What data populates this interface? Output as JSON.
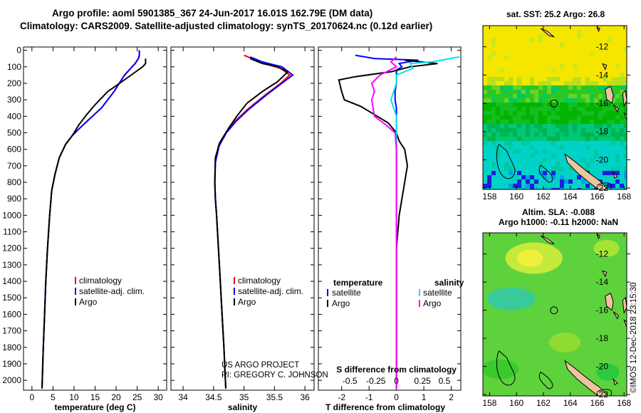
{
  "header": {
    "line1": "Argo profile: aoml 5901385_367 24-Jun-2017 16.01S 162.79E (DM data)",
    "line2": "Climatology: CARS2009. Satellite-adjusted climatology: synTS_20170624.nc (0.12d earlier)"
  },
  "credits": {
    "line1": "US ARGO PROJECT",
    "line2": "PI: GREGORY C. JOHNSON"
  },
  "imos_label": "©IMOS 12-Dec-2018 23:15:30",
  "colors": {
    "climatology": "#ff0000",
    "satellite": "#0000ff",
    "argo": "#000000",
    "sat_salinity": "#00e5e5",
    "argo_salinity": "#ff00ff"
  },
  "depth_axis": {
    "ticks": [
      0,
      100,
      200,
      300,
      400,
      500,
      600,
      700,
      800,
      900,
      1000,
      1100,
      1200,
      1300,
      1400,
      1500,
      1600,
      1700,
      1800,
      1900,
      2000
    ]
  },
  "legend1": {
    "entries": [
      "climatology",
      "satellite-adj. clim.",
      "Argo"
    ]
  },
  "legend_diff": {
    "temperature_title": "temperature",
    "salinity_title": "salinity",
    "entries": [
      "satellite",
      "Argo"
    ]
  },
  "chart_data": [
    {
      "type": "line",
      "xlabel": "temperature (deg C)",
      "xticks": [
        0,
        5,
        10,
        15,
        20,
        25,
        30
      ],
      "xlim": [
        -2,
        32
      ],
      "ylim": [
        2060,
        -20
      ],
      "series": [
        {
          "name": "climatology",
          "points": [
            [
              25.5,
              0
            ],
            [
              25.5,
              30
            ],
            [
              25.3,
              50
            ],
            [
              24.5,
              80
            ],
            [
              22.0,
              150
            ],
            [
              19.5,
              250
            ],
            [
              16.5,
              350
            ],
            [
              13.5,
              420
            ],
            [
              11.0,
              480
            ],
            [
              9.5,
              520
            ],
            [
              8.0,
              570
            ],
            [
              6.5,
              650
            ],
            [
              5.5,
              750
            ],
            [
              4.7,
              850
            ],
            [
              4.2,
              1000
            ],
            [
              3.7,
              1200
            ],
            [
              3.3,
              1400
            ],
            [
              3.0,
              1600
            ],
            [
              2.7,
              1800
            ],
            [
              2.4,
              2050
            ]
          ]
        },
        {
          "name": "satellite-adj. clim.",
          "points": [
            [
              25.5,
              0
            ],
            [
              25.5,
              30
            ],
            [
              25.3,
              50
            ],
            [
              24.5,
              80
            ],
            [
              22.0,
              150
            ],
            [
              19.5,
              250
            ],
            [
              16.5,
              350
            ],
            [
              13.5,
              420
            ],
            [
              11.0,
              480
            ],
            [
              9.5,
              520
            ],
            [
              8.0,
              570
            ],
            [
              6.5,
              650
            ],
            [
              5.5,
              750
            ],
            [
              4.7,
              850
            ],
            [
              4.2,
              1000
            ],
            [
              3.7,
              1200
            ],
            [
              3.3,
              1400
            ],
            [
              3.0,
              1600
            ],
            [
              2.7,
              1800
            ],
            [
              2.4,
              2050
            ]
          ]
        },
        {
          "name": "Argo",
          "points": [
            [
              27.0,
              50
            ],
            [
              27.0,
              80
            ],
            [
              26.3,
              100
            ],
            [
              22.5,
              170
            ],
            [
              18.0,
              250
            ],
            [
              15.0,
              330
            ],
            [
              13.0,
              390
            ],
            [
              11.2,
              450
            ],
            [
              10.0,
              500
            ],
            [
              9.2,
              530
            ],
            [
              8.0,
              570
            ],
            [
              6.5,
              650
            ],
            [
              5.5,
              750
            ],
            [
              4.7,
              850
            ],
            [
              4.2,
              1000
            ],
            [
              3.7,
              1200
            ],
            [
              3.3,
              1400
            ],
            [
              3.0,
              1600
            ],
            [
              2.7,
              1800
            ],
            [
              2.4,
              2050
            ]
          ]
        }
      ]
    },
    {
      "type": "line",
      "xlabel": "salinity",
      "xticks": [
        34,
        34.5,
        35,
        35.5,
        36
      ],
      "xlim": [
        33.8,
        36.15
      ],
      "ylim": [
        2060,
        -20
      ],
      "series": [
        {
          "name": "climatology",
          "points": [
            [
              35.0,
              30
            ],
            [
              35.25,
              70
            ],
            [
              35.6,
              110
            ],
            [
              35.75,
              150
            ],
            [
              35.6,
              200
            ],
            [
              35.35,
              270
            ],
            [
              35.05,
              360
            ],
            [
              34.85,
              430
            ],
            [
              34.7,
              500
            ],
            [
              34.58,
              580
            ],
            [
              34.53,
              680
            ],
            [
              34.52,
              800
            ],
            [
              34.53,
              900
            ],
            [
              34.55,
              1000
            ],
            [
              34.58,
              1200
            ],
            [
              34.61,
              1400
            ],
            [
              34.64,
              1600
            ],
            [
              34.67,
              1800
            ],
            [
              34.7,
              2050
            ]
          ]
        },
        {
          "name": "satellite-adj. clim.",
          "points": [
            [
              35.1,
              40
            ],
            [
              35.3,
              70
            ],
            [
              35.62,
              100
            ],
            [
              35.8,
              150
            ],
            [
              35.62,
              200
            ],
            [
              35.37,
              270
            ],
            [
              35.07,
              360
            ],
            [
              34.87,
              430
            ],
            [
              34.71,
              500
            ],
            [
              34.59,
              580
            ],
            [
              34.53,
              680
            ],
            [
              34.52,
              800
            ],
            [
              34.53,
              900
            ],
            [
              34.55,
              1000
            ],
            [
              34.58,
              1200
            ],
            [
              34.61,
              1400
            ],
            [
              34.64,
              1600
            ],
            [
              34.67,
              1800
            ],
            [
              34.7,
              2050
            ]
          ]
        },
        {
          "name": "Argo",
          "points": [
            [
              35.1,
              50
            ],
            [
              35.3,
              80
            ],
            [
              35.55,
              100
            ],
            [
              35.72,
              130
            ],
            [
              35.55,
              190
            ],
            [
              35.3,
              250
            ],
            [
              35.05,
              320
            ],
            [
              34.88,
              400
            ],
            [
              34.75,
              470
            ],
            [
              34.6,
              560
            ],
            [
              34.53,
              650
            ],
            [
              34.52,
              800
            ],
            [
              34.53,
              900
            ],
            [
              34.55,
              1000
            ],
            [
              34.58,
              1200
            ],
            [
              34.61,
              1400
            ],
            [
              34.64,
              1600
            ],
            [
              34.67,
              1800
            ],
            [
              34.7,
              2050
            ]
          ]
        }
      ]
    },
    {
      "type": "line",
      "xlabel": "T difference from climatology",
      "xticks": [
        -2,
        -1,
        0,
        1,
        2
      ],
      "xlim": [
        -2.85,
        2.35
      ],
      "top_label": "S difference from climatology",
      "top_ticks": [
        "-0.5",
        "-0.25",
        "0",
        "0.25",
        "0.5"
      ],
      "ylim": [
        2060,
        -20
      ],
      "series": [
        {
          "name": "satellite temperature",
          "points": [
            [
              -1.5,
              30
            ],
            [
              -0.8,
              50
            ],
            [
              0.8,
              60
            ],
            [
              0.1,
              80
            ],
            [
              0.2,
              100
            ],
            [
              0,
              120
            ],
            [
              0,
              150
            ],
            [
              0,
              200
            ],
            [
              -0.05,
              250
            ],
            [
              -0.05,
              300
            ],
            [
              0,
              350
            ],
            [
              0,
              400
            ],
            [
              0,
              450
            ],
            [
              0,
              500
            ],
            [
              0,
              550
            ],
            [
              0,
              600
            ],
            [
              0,
              800
            ],
            [
              0,
              1000
            ],
            [
              0,
              1500
            ],
            [
              0,
              2050
            ]
          ]
        },
        {
          "name": "Argo temperature",
          "points": [
            [
              0.3,
              60
            ],
            [
              1.5,
              80
            ],
            [
              0.5,
              100
            ],
            [
              -0.2,
              130
            ],
            [
              -1.5,
              160
            ],
            [
              -2.1,
              180
            ],
            [
              -2.0,
              250
            ],
            [
              -1.9,
              300
            ],
            [
              -1.3,
              340
            ],
            [
              -0.7,
              400
            ],
            [
              -0.3,
              440
            ],
            [
              0,
              500
            ],
            [
              0.1,
              550
            ],
            [
              0.3,
              600
            ],
            [
              0.4,
              700
            ],
            [
              0.3,
              800
            ],
            [
              0.2,
              900
            ],
            [
              0.1,
              1000
            ],
            [
              0,
              1200
            ],
            [
              0,
              2050
            ]
          ]
        },
        {
          "name": "satellite salinity",
          "points": [
            [
              2.3,
              40
            ],
            [
              1.3,
              70
            ],
            [
              0.5,
              80
            ],
            [
              0.6,
              110
            ],
            [
              0,
              150
            ],
            [
              0,
              200
            ],
            [
              -0.2,
              300
            ],
            [
              0,
              400
            ],
            [
              0,
              500
            ],
            [
              0,
              800
            ],
            [
              0,
              1500
            ],
            [
              0,
              2050
            ]
          ]
        },
        {
          "name": "Argo salinity",
          "points": [
            [
              0,
              40
            ],
            [
              -0.2,
              70
            ],
            [
              0,
              100
            ],
            [
              -0.6,
              150
            ],
            [
              -0.9,
              200
            ],
            [
              -0.8,
              250
            ],
            [
              -0.9,
              300
            ],
            [
              -0.8,
              400
            ],
            [
              -0.4,
              450
            ],
            [
              -0.05,
              500
            ],
            [
              0,
              600
            ],
            [
              0,
              800
            ],
            [
              0,
              1500
            ],
            [
              0,
              2050
            ]
          ]
        }
      ]
    }
  ],
  "map_sst": {
    "title": "sat. SST: 25.2 Argo: 26.8",
    "xticks": [
      158,
      160,
      162,
      164,
      166,
      168
    ],
    "yticks": [
      -12,
      -14,
      -16,
      -18,
      -20,
      -22
    ],
    "argo_position": {
      "lon": 162.79,
      "lat": -16.01
    }
  },
  "map_sla": {
    "title1": "Altim. SLA: -0.088",
    "title2": "Argo h1000: -0.11 h2000: NaN",
    "xticks": [
      158,
      160,
      162,
      164,
      166,
      168
    ],
    "yticks": [
      -12,
      -14,
      -16,
      -18,
      -20,
      -22
    ],
    "argo_position": {
      "lon": 162.79,
      "lat": -16.01
    }
  }
}
